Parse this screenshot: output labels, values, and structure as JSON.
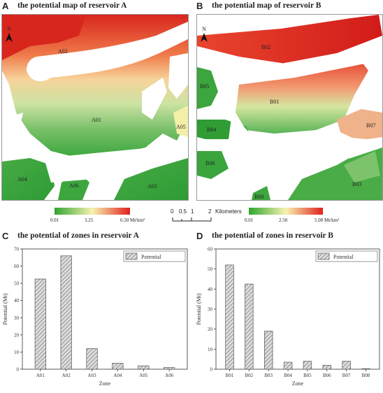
{
  "panels": {
    "a": {
      "letter": "A",
      "title": "the potential map of reservoir A",
      "zones": [
        "A01",
        "A02",
        "A03",
        "A04",
        "A05",
        "A06"
      ],
      "legend": {
        "min": "0.01",
        "mid": "3.25",
        "max": "6.50 Mt/km²"
      }
    },
    "b": {
      "letter": "B",
      "title": "the potential map of reservoir B",
      "zones": [
        "B01",
        "B02",
        "B03",
        "B04",
        "B05",
        "B06",
        "B07",
        "B08"
      ],
      "legend": {
        "min": "0.01",
        "mid": "2.50",
        "max": "5.00 Mt/km²"
      }
    },
    "c": {
      "letter": "C",
      "title": "the potential of zones in reservoir A"
    },
    "d": {
      "letter": "D",
      "title": "the potential of zones in reservoir B"
    }
  },
  "north_label": "N",
  "scalebar": {
    "ticks": [
      "0",
      "0.5",
      "1",
      "2"
    ],
    "unit": "Kilometers"
  },
  "colors": {
    "low": "#2fa52f",
    "mid": "#f7f2b0",
    "high": "#e0201e",
    "bar_fill": "#d4d4d4",
    "bar_stroke": "#555555"
  },
  "chart_data": [
    {
      "type": "bar",
      "title": "the potential of zones in reservoir A",
      "xlabel": "Zone",
      "ylabel": "Potential (Mt)",
      "categories": [
        "A01",
        "A02",
        "A03",
        "A04",
        "A05",
        "A06"
      ],
      "series": [
        {
          "name": "Potential",
          "values": [
            52.5,
            66,
            12,
            3.5,
            2,
            1
          ]
        }
      ],
      "ylim": [
        0,
        70
      ],
      "yticks": [
        0,
        10,
        20,
        30,
        40,
        50,
        60,
        70
      ],
      "legend": "top-right",
      "grid": false
    },
    {
      "type": "bar",
      "title": "the potential of zones in reservoir B",
      "xlabel": "Zone",
      "ylabel": "Potential (Mt)",
      "categories": [
        "B01",
        "B02",
        "B03",
        "B04",
        "B05",
        "B06",
        "B07",
        "B08"
      ],
      "series": [
        {
          "name": "Potential",
          "values": [
            52,
            42.5,
            19,
            3.5,
            4,
            2,
            4,
            0.3
          ]
        }
      ],
      "ylim": [
        0,
        60
      ],
      "yticks": [
        0,
        10,
        20,
        30,
        40,
        50,
        60
      ],
      "legend": "top-right",
      "grid": false
    }
  ]
}
